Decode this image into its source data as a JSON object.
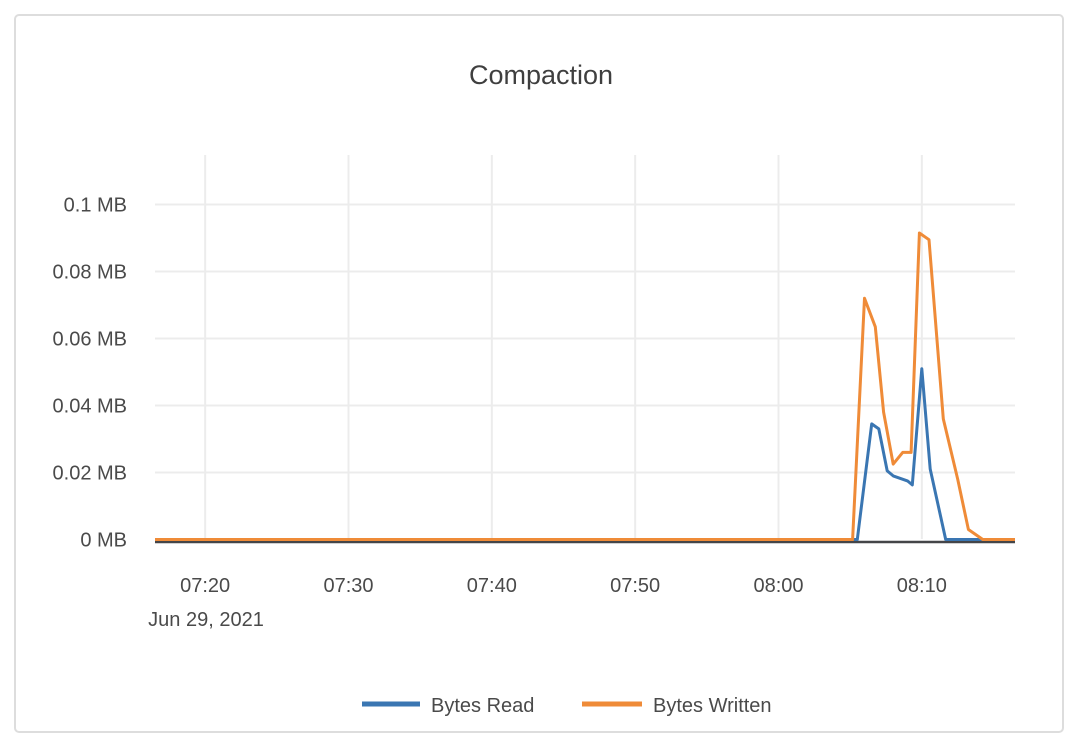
{
  "chart_data": {
    "type": "line",
    "title": "Compaction",
    "xlabel": "",
    "ylabel": "",
    "x_axis": {
      "tick_labels": [
        "07:20",
        "07:30",
        "07:40",
        "07:50",
        "08:00",
        "08:10"
      ],
      "date_label": "Jun 29, 2021",
      "range": [
        "07:16:30",
        "08:16:30"
      ]
    },
    "y_axis": {
      "tick_labels": [
        "0 MB",
        "0.02 MB",
        "0.04 MB",
        "0.06 MB",
        "0.08 MB",
        "0.1 MB"
      ],
      "tick_values": [
        0,
        0.02,
        0.04,
        0.06,
        0.08,
        0.1
      ],
      "unit": "MB"
    },
    "ylim": [
      0,
      0.115
    ],
    "grid": true,
    "legend_position": "bottom",
    "series": [
      {
        "name": "Bytes Read",
        "color": "#3A76B2",
        "points": [
          [
            "07:16:30",
            0
          ],
          [
            "08:05:30",
            0
          ],
          [
            "08:06:30",
            0.0345
          ],
          [
            "08:07:00",
            0.033
          ],
          [
            "08:07:35",
            0.0205
          ],
          [
            "08:08:00",
            0.019
          ],
          [
            "08:09:00",
            0.0175
          ],
          [
            "08:09:20",
            0.0163
          ],
          [
            "08:10:00",
            0.051
          ],
          [
            "08:10:35",
            0.021
          ],
          [
            "08:11:40",
            0
          ],
          [
            "08:16:30",
            0
          ]
        ]
      },
      {
        "name": "Bytes Written",
        "color": "#EF8B38",
        "points": [
          [
            "07:16:30",
            0
          ],
          [
            "08:05:10",
            0
          ],
          [
            "08:06:00",
            0.072
          ],
          [
            "08:06:45",
            0.0635
          ],
          [
            "08:07:20",
            0.038
          ],
          [
            "08:08:00",
            0.0225
          ],
          [
            "08:08:40",
            0.026
          ],
          [
            "08:09:15",
            0.026
          ],
          [
            "08:09:50",
            0.0915
          ],
          [
            "08:10:30",
            0.0895
          ],
          [
            "08:11:30",
            0.036
          ],
          [
            "08:12:30",
            0.018
          ],
          [
            "08:13:15",
            0.003
          ],
          [
            "08:14:15",
            0
          ],
          [
            "08:16:30",
            0
          ]
        ]
      }
    ],
    "colors": {
      "grid": "#ececec",
      "axis_line": "#444548",
      "text": "#4a4a4a",
      "card_border": "#dddddd",
      "background": "#ffffff"
    }
  }
}
